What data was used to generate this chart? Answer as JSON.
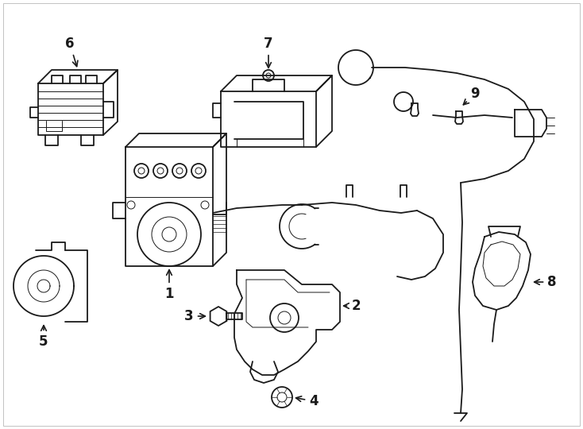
{
  "background_color": "#ffffff",
  "line_color": "#1a1a1a",
  "lw": 1.3,
  "lw_thin": 0.7,
  "figsize": [
    7.34,
    5.4
  ],
  "dpi": 100,
  "xlim": [
    0,
    734
  ],
  "ylim": [
    0,
    540
  ]
}
